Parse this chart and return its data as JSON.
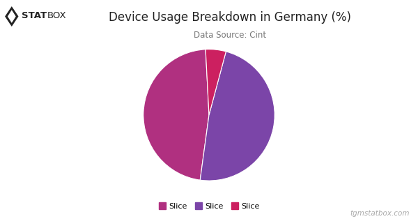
{
  "title": "Device Usage Breakdown in Germany (%)",
  "subtitle": "Data Source: Cint",
  "slices": [
    47.0,
    48.0,
    5.0
  ],
  "colors": [
    "#B03080",
    "#7B45A8",
    "#CC2060"
  ],
  "labels": [
    "Slice",
    "Slice",
    "Slice"
  ],
  "watermark": "tgmstatbox.com",
  "bg_color": "#FFFFFF",
  "title_color": "#222222",
  "subtitle_color": "#777777",
  "startangle": 93,
  "legend_fontsize": 8,
  "title_fontsize": 12,
  "subtitle_fontsize": 8.5
}
